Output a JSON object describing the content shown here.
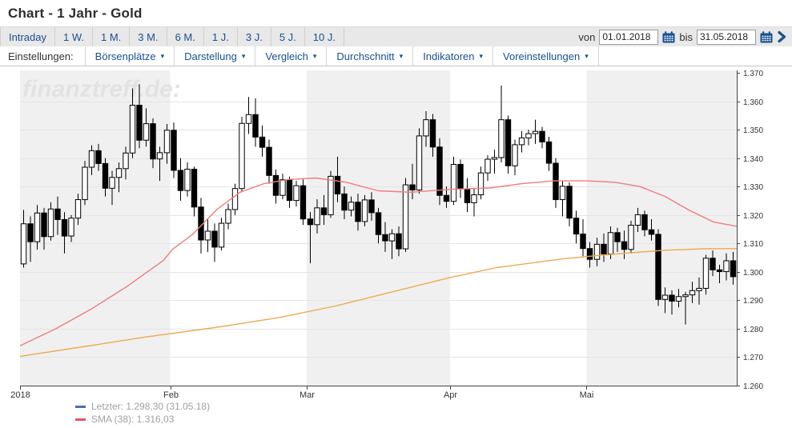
{
  "header": {
    "title": "Chart - 1 Jahr - Gold"
  },
  "period_tabs": {
    "items": [
      "Intraday",
      "1 W.",
      "1 M.",
      "3 M.",
      "6 M.",
      "1 J.",
      "3 J.",
      "5 J.",
      "10 J."
    ]
  },
  "date_range": {
    "von_label": "von",
    "from_value": "01.01.2018",
    "bis_label": "bis",
    "to_value": "31.05.2018",
    "calendar_icon": "calendar",
    "next_icon": "chevron-right"
  },
  "settings_bar": {
    "label": "Einstellungen:",
    "caret_icon": "▾",
    "menus": [
      "Börsenplätze",
      "Darstellung",
      "Vergleich",
      "Durchschnitt",
      "Indikatoren",
      "Voreinstellungen"
    ]
  },
  "watermark": "finanztreff.de:",
  "colors": {
    "accent_blue": "#19508f",
    "tab_bg": "#e8e8e8",
    "band_gray": "#f0f0f0",
    "grid": "#e4e4e4",
    "axis": "#444444",
    "axis_text": "#333333",
    "candle": "#000000",
    "sma_fast": "#ee7d7d",
    "sma_slow": "#eda94e",
    "watermark": "#e2e2e2",
    "legend_text": "#a0a0a0",
    "legend_last_swatch": "#4372aa",
    "legend_sma_swatch": "#e05858"
  },
  "chart_data": {
    "type": "candlestick",
    "title": "Chart - 1 Jahr - Gold",
    "ylim": [
      1260,
      1370
    ],
    "grid": true,
    "y_tick_labels": [
      "1.370",
      "1.360",
      "1.350",
      "1.340",
      "1.330",
      "1.320",
      "1.310",
      "1.300",
      "1.290",
      "1.280",
      "1.270",
      "1.260"
    ],
    "months": [
      {
        "label": "2018",
        "days": 22
      },
      {
        "label": "Feb",
        "days": 20
      },
      {
        "label": "Mar",
        "days": 21
      },
      {
        "label": "Apr",
        "days": 20
      },
      {
        "label": "Mai",
        "days": 22
      }
    ],
    "candle_format": "[open, high, low, close]",
    "candles": [
      [
        1302.8,
        1321.8,
        1301.5,
        1316.9
      ],
      [
        1316.9,
        1319.5,
        1303.5,
        1310.6
      ],
      [
        1310.6,
        1323.5,
        1307.8,
        1320.7
      ],
      [
        1320.7,
        1322.5,
        1307.8,
        1312.4
      ],
      [
        1312.4,
        1324.5,
        1311.0,
        1322.1
      ],
      [
        1322.1,
        1326.5,
        1313.0,
        1318.4
      ],
      [
        1318.4,
        1321.0,
        1306.5,
        1312.6
      ],
      [
        1312.6,
        1320.0,
        1310.5,
        1318.9
      ],
      [
        1318.9,
        1327.5,
        1316.5,
        1325.4
      ],
      [
        1325.4,
        1339.0,
        1323.5,
        1336.8
      ],
      [
        1336.8,
        1344.5,
        1334.0,
        1342.6
      ],
      [
        1342.6,
        1345.0,
        1335.5,
        1338.1
      ],
      [
        1338.1,
        1340.0,
        1326.5,
        1329.4
      ],
      [
        1329.4,
        1335.5,
        1323.5,
        1333.2
      ],
      [
        1333.2,
        1338.5,
        1328.0,
        1336.3
      ],
      [
        1336.3,
        1344.0,
        1332.5,
        1341.8
      ],
      [
        1341.8,
        1364.5,
        1340.0,
        1358.6
      ],
      [
        1358.6,
        1366.0,
        1343.5,
        1346.3
      ],
      [
        1346.3,
        1357.5,
        1344.0,
        1352.1
      ],
      [
        1352.1,
        1354.0,
        1336.5,
        1339.7
      ],
      [
        1339.7,
        1344.0,
        1332.0,
        1341.9
      ],
      [
        1341.9,
        1352.0,
        1338.0,
        1349.8
      ],
      [
        1349.8,
        1352.5,
        1333.0,
        1335.7
      ],
      [
        1335.7,
        1340.0,
        1325.0,
        1328.6
      ],
      [
        1328.6,
        1338.5,
        1326.5,
        1336.1
      ],
      [
        1336.1,
        1337.0,
        1319.5,
        1322.8
      ],
      [
        1322.8,
        1326.0,
        1306.5,
        1311.2
      ],
      [
        1311.2,
        1318.5,
        1307.0,
        1314.3
      ],
      [
        1314.3,
        1317.0,
        1303.5,
        1308.7
      ],
      [
        1308.7,
        1319.0,
        1307.5,
        1317.1
      ],
      [
        1317.1,
        1324.0,
        1315.0,
        1321.9
      ],
      [
        1321.9,
        1331.0,
        1320.0,
        1329.3
      ],
      [
        1329.3,
        1354.5,
        1328.0,
        1352.2
      ],
      [
        1352.2,
        1361.5,
        1348.5,
        1355.3
      ],
      [
        1355.3,
        1361.0,
        1344.0,
        1347.4
      ],
      [
        1347.4,
        1351.5,
        1340.5,
        1343.8
      ],
      [
        1343.8,
        1346.5,
        1331.0,
        1333.9
      ],
      [
        1333.9,
        1336.0,
        1324.0,
        1326.9
      ],
      [
        1326.9,
        1334.5,
        1325.5,
        1332.4
      ],
      [
        1332.4,
        1333.5,
        1322.5,
        1325.1
      ],
      [
        1325.1,
        1332.0,
        1323.0,
        1330.3
      ],
      [
        1330.3,
        1332.5,
        1316.5,
        1318.6
      ],
      [
        1318.6,
        1321.0,
        1303.0,
        1316.6
      ],
      [
        1316.6,
        1325.5,
        1313.5,
        1322.5
      ],
      [
        1322.5,
        1327.0,
        1316.5,
        1320.1
      ],
      [
        1320.1,
        1335.5,
        1319.0,
        1333.6
      ],
      [
        1333.6,
        1340.5,
        1324.5,
        1327.4
      ],
      [
        1327.4,
        1330.0,
        1318.5,
        1321.7
      ],
      [
        1321.7,
        1326.5,
        1319.5,
        1324.5
      ],
      [
        1324.5,
        1327.5,
        1314.5,
        1317.7
      ],
      [
        1317.7,
        1327.0,
        1316.0,
        1325.3
      ],
      [
        1325.3,
        1328.0,
        1318.0,
        1320.8
      ],
      [
        1320.8,
        1322.5,
        1310.0,
        1313.1
      ],
      [
        1313.1,
        1317.5,
        1307.0,
        1310.9
      ],
      [
        1310.9,
        1315.0,
        1304.5,
        1313.4
      ],
      [
        1313.4,
        1316.0,
        1305.5,
        1308.1
      ],
      [
        1308.1,
        1333.0,
        1307.0,
        1330.6
      ],
      [
        1330.6,
        1338.0,
        1325.5,
        1328.8
      ],
      [
        1328.8,
        1350.5,
        1327.5,
        1347.8
      ],
      [
        1347.8,
        1356.5,
        1344.0,
        1353.5
      ],
      [
        1353.5,
        1355.5,
        1340.5,
        1343.9
      ],
      [
        1343.9,
        1347.0,
        1323.5,
        1326.9
      ],
      [
        1326.9,
        1330.0,
        1322.5,
        1324.8
      ],
      [
        1324.8,
        1340.5,
        1323.5,
        1337.8
      ],
      [
        1337.8,
        1339.5,
        1326.0,
        1329.2
      ],
      [
        1329.2,
        1333.0,
        1321.0,
        1324.3
      ],
      [
        1324.3,
        1329.5,
        1319.5,
        1327.1
      ],
      [
        1327.1,
        1337.0,
        1325.5,
        1334.8
      ],
      [
        1334.8,
        1341.0,
        1332.0,
        1339.6
      ],
      [
        1339.6,
        1343.0,
        1334.5,
        1340.2
      ],
      [
        1340.2,
        1365.5,
        1338.5,
        1353.5
      ],
      [
        1353.5,
        1355.0,
        1334.5,
        1337.3
      ],
      [
        1337.3,
        1346.5,
        1334.0,
        1344.7
      ],
      [
        1344.7,
        1349.5,
        1342.0,
        1347.1
      ],
      [
        1347.1,
        1350.0,
        1344.5,
        1348.6
      ],
      [
        1348.6,
        1353.5,
        1345.0,
        1349.4
      ],
      [
        1349.4,
        1351.0,
        1343.5,
        1345.7
      ],
      [
        1345.7,
        1347.5,
        1335.5,
        1338.2
      ],
      [
        1338.2,
        1340.0,
        1322.5,
        1325.4
      ],
      [
        1325.4,
        1332.0,
        1319.5,
        1330.1
      ],
      [
        1330.1,
        1331.5,
        1316.0,
        1318.9
      ],
      [
        1318.9,
        1321.5,
        1310.0,
        1313.3
      ],
      [
        1313.3,
        1318.5,
        1305.5,
        1308.2
      ],
      [
        1308.2,
        1310.5,
        1301.5,
        1304.4
      ],
      [
        1304.4,
        1312.0,
        1302.0,
        1309.7
      ],
      [
        1309.7,
        1313.5,
        1303.5,
        1306.3
      ],
      [
        1306.3,
        1316.0,
        1304.5,
        1313.8
      ],
      [
        1313.8,
        1315.5,
        1307.0,
        1310.6
      ],
      [
        1310.6,
        1314.5,
        1304.5,
        1307.9
      ],
      [
        1307.9,
        1318.0,
        1306.5,
        1316.4
      ],
      [
        1316.4,
        1322.5,
        1314.0,
        1320.1
      ],
      [
        1320.1,
        1321.5,
        1312.5,
        1314.8
      ],
      [
        1314.8,
        1318.5,
        1311.0,
        1313.2
      ],
      [
        1313.2,
        1315.0,
        1288.0,
        1290.3
      ],
      [
        1290.3,
        1294.5,
        1285.5,
        1291.8
      ],
      [
        1291.8,
        1293.5,
        1285.0,
        1289.7
      ],
      [
        1289.7,
        1294.0,
        1287.5,
        1291.3
      ],
      [
        1291.3,
        1293.0,
        1281.5,
        1291.9
      ],
      [
        1291.9,
        1296.5,
        1289.0,
        1293.4
      ],
      [
        1293.4,
        1298.0,
        1288.5,
        1294.2
      ],
      [
        1294.2,
        1306.0,
        1292.0,
        1304.8
      ],
      [
        1304.8,
        1307.5,
        1298.5,
        1300.7
      ],
      [
        1300.7,
        1302.5,
        1296.0,
        1300.1
      ],
      [
        1300.1,
        1306.5,
        1297.0,
        1303.9
      ],
      [
        1303.9,
        1307.0,
        1295.5,
        1298.3
      ]
    ],
    "overlays": [
      {
        "name": "sma-fast",
        "color": "#ee7d7d",
        "points": [
          [
            0,
            1274
          ],
          [
            0.05,
            1280
          ],
          [
            0.1,
            1287
          ],
          [
            0.15,
            1295
          ],
          [
            0.2,
            1304
          ],
          [
            0.213,
            1308
          ],
          [
            0.24,
            1313
          ],
          [
            0.275,
            1322
          ],
          [
            0.307,
            1328
          ],
          [
            0.34,
            1331
          ],
          [
            0.375,
            1332.5
          ],
          [
            0.413,
            1333
          ],
          [
            0.455,
            1331.5
          ],
          [
            0.5,
            1328.5
          ],
          [
            0.545,
            1328
          ],
          [
            0.6,
            1329
          ],
          [
            0.655,
            1329.5
          ],
          [
            0.7,
            1331
          ],
          [
            0.745,
            1332
          ],
          [
            0.79,
            1332
          ],
          [
            0.83,
            1331.5
          ],
          [
            0.865,
            1330
          ],
          [
            0.9,
            1326.5
          ],
          [
            0.935,
            1321.5
          ],
          [
            0.968,
            1317.5
          ],
          [
            1,
            1316
          ]
        ]
      },
      {
        "name": "sma-slow",
        "color": "#eda94e",
        "points": [
          [
            0,
            1270.3
          ],
          [
            0.084,
            1273.5
          ],
          [
            0.173,
            1277
          ],
          [
            0.28,
            1280.7
          ],
          [
            0.363,
            1284
          ],
          [
            0.44,
            1288
          ],
          [
            0.52,
            1293
          ],
          [
            0.6,
            1298
          ],
          [
            0.665,
            1301.5
          ],
          [
            0.71,
            1303
          ],
          [
            0.755,
            1304.5
          ],
          [
            0.795,
            1305.5
          ],
          [
            0.845,
            1306.6
          ],
          [
            0.9,
            1307.6
          ],
          [
            0.955,
            1308.1
          ],
          [
            1,
            1308.2
          ]
        ]
      }
    ],
    "legend_position": "bottom-left"
  },
  "legend": {
    "items": [
      {
        "swatch_color": "#4372aa",
        "label": "Letzter: 1.298,30 (31.05.18)"
      },
      {
        "swatch_color": "#e05858",
        "label": "SMA (38): 1.316,03"
      }
    ]
  }
}
